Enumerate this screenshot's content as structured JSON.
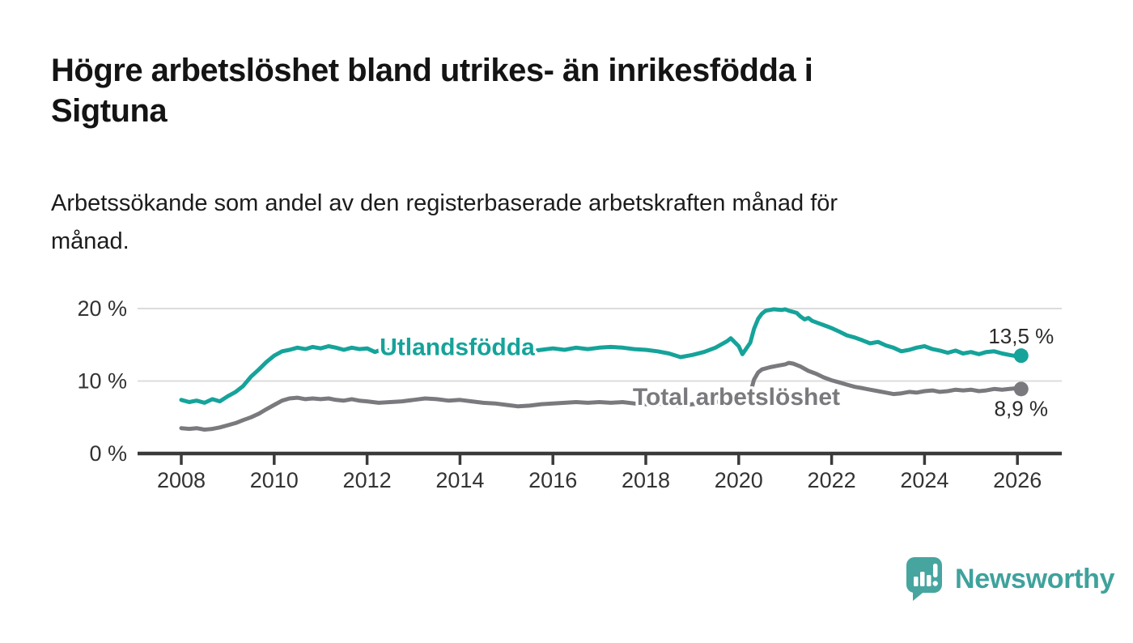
{
  "header": {
    "title": "Högre arbetslöshet bland utrikes- än inrikesfödda i\nSigtuna",
    "subtitle": "Arbetssökande som andel av den registerbaserade arbetskraften månad för\nmånad."
  },
  "branding": {
    "logo_text": "Newsworthy",
    "logo_icon": "bar-chart-speech-bubble-icon",
    "logo_color": "#47a5a0",
    "logo_text_color": "#3fa29c"
  },
  "colors": {
    "foreign_born_line": "#15a39a",
    "total_line": "#7a797d",
    "axis_text": "#333333",
    "axis_line": "#3a3a3a",
    "gridline": "#dcdcdc",
    "end_label_text": "#2b2b2b",
    "title_text": "#141414"
  },
  "chart_data": {
    "type": "line",
    "x_ticks": [
      2008,
      2010,
      2012,
      2014,
      2016,
      2018,
      2020,
      2022,
      2024,
      2026
    ],
    "y_ticks": [
      {
        "value": 0,
        "label": "0 %"
      },
      {
        "value": 10,
        "label": "10 %"
      },
      {
        "value": 20,
        "label": "20 %"
      }
    ],
    "xlim": [
      2007.1,
      2027.0
    ],
    "ylim": [
      0,
      22.4
    ],
    "grid": "horizontal-only",
    "legend_position": "inline-labels-on-lines",
    "series": [
      {
        "name": "Utlandsfödda",
        "color": "#15a39a",
        "end_label": "13,5 %",
        "end_label_position": "above",
        "last_value": 13.5,
        "inline_label": {
          "year": 2013.94,
          "value": 13.6
        },
        "points": [
          [
            2008.0,
            7.4
          ],
          [
            2008.17,
            7.1
          ],
          [
            2008.33,
            7.3
          ],
          [
            2008.5,
            7.0
          ],
          [
            2008.67,
            7.5
          ],
          [
            2008.83,
            7.2
          ],
          [
            2009.0,
            7.9
          ],
          [
            2009.17,
            8.5
          ],
          [
            2009.33,
            9.3
          ],
          [
            2009.5,
            10.6
          ],
          [
            2009.67,
            11.6
          ],
          [
            2009.83,
            12.6
          ],
          [
            2010.0,
            13.5
          ],
          [
            2010.17,
            14.1
          ],
          [
            2010.33,
            14.3
          ],
          [
            2010.5,
            14.6
          ],
          [
            2010.67,
            14.4
          ],
          [
            2010.83,
            14.7
          ],
          [
            2011.0,
            14.5
          ],
          [
            2011.17,
            14.8
          ],
          [
            2011.33,
            14.6
          ],
          [
            2011.5,
            14.3
          ],
          [
            2011.67,
            14.6
          ],
          [
            2011.83,
            14.4
          ],
          [
            2012.0,
            14.5
          ],
          [
            2012.17,
            14.0
          ],
          [
            2012.33,
            14.4
          ],
          [
            2012.5,
            14.2
          ],
          [
            2012.67,
            14.5
          ],
          [
            2012.83,
            14.4
          ],
          [
            2013.0,
            14.5
          ],
          [
            2013.25,
            14.7
          ],
          [
            2013.5,
            14.8
          ],
          [
            2013.75,
            14.5
          ],
          [
            2014.0,
            14.7
          ],
          [
            2014.25,
            14.4
          ],
          [
            2014.5,
            14.2
          ],
          [
            2014.75,
            14.0
          ],
          [
            2015.0,
            14.3
          ],
          [
            2015.25,
            13.9
          ],
          [
            2015.5,
            14.1
          ],
          [
            2015.75,
            14.3
          ],
          [
            2016.0,
            14.5
          ],
          [
            2016.25,
            14.3
          ],
          [
            2016.5,
            14.6
          ],
          [
            2016.75,
            14.4
          ],
          [
            2017.0,
            14.6
          ],
          [
            2017.25,
            14.7
          ],
          [
            2017.5,
            14.6
          ],
          [
            2017.75,
            14.4
          ],
          [
            2018.0,
            14.3
          ],
          [
            2018.25,
            14.1
          ],
          [
            2018.5,
            13.8
          ],
          [
            2018.75,
            13.3
          ],
          [
            2019.0,
            13.6
          ],
          [
            2019.25,
            14.0
          ],
          [
            2019.5,
            14.6
          ],
          [
            2019.75,
            15.5
          ],
          [
            2019.83,
            15.9
          ],
          [
            2020.0,
            14.8
          ],
          [
            2020.08,
            13.7
          ],
          [
            2020.25,
            15.3
          ],
          [
            2020.33,
            17.2
          ],
          [
            2020.42,
            18.6
          ],
          [
            2020.5,
            19.3
          ],
          [
            2020.58,
            19.7
          ],
          [
            2020.75,
            19.9
          ],
          [
            2020.92,
            19.8
          ],
          [
            2021.0,
            19.9
          ],
          [
            2021.08,
            19.7
          ],
          [
            2021.25,
            19.4
          ],
          [
            2021.33,
            18.9
          ],
          [
            2021.42,
            18.5
          ],
          [
            2021.5,
            18.7
          ],
          [
            2021.58,
            18.3
          ],
          [
            2021.75,
            17.9
          ],
          [
            2021.92,
            17.5
          ],
          [
            2022.0,
            17.3
          ],
          [
            2022.17,
            16.8
          ],
          [
            2022.33,
            16.3
          ],
          [
            2022.5,
            16.0
          ],
          [
            2022.67,
            15.6
          ],
          [
            2022.83,
            15.2
          ],
          [
            2023.0,
            15.4
          ],
          [
            2023.17,
            14.9
          ],
          [
            2023.33,
            14.6
          ],
          [
            2023.5,
            14.1
          ],
          [
            2023.67,
            14.3
          ],
          [
            2023.83,
            14.6
          ],
          [
            2024.0,
            14.8
          ],
          [
            2024.17,
            14.4
          ],
          [
            2024.33,
            14.2
          ],
          [
            2024.5,
            13.9
          ],
          [
            2024.67,
            14.2
          ],
          [
            2024.83,
            13.8
          ],
          [
            2025.0,
            14.0
          ],
          [
            2025.17,
            13.7
          ],
          [
            2025.33,
            14.0
          ],
          [
            2025.5,
            14.1
          ],
          [
            2025.67,
            13.8
          ],
          [
            2025.83,
            13.6
          ],
          [
            2026.0,
            13.4
          ],
          [
            2026.08,
            13.5
          ]
        ]
      },
      {
        "name": "Total arbetslöshet",
        "color": "#7a797d",
        "end_label": "8,9 %",
        "end_label_position": "below",
        "last_value": 8.9,
        "inline_label": {
          "year": 2019.95,
          "value": 6.7
        },
        "points": [
          [
            2008.0,
            3.5
          ],
          [
            2008.17,
            3.4
          ],
          [
            2008.33,
            3.5
          ],
          [
            2008.5,
            3.3
          ],
          [
            2008.67,
            3.4
          ],
          [
            2008.83,
            3.6
          ],
          [
            2009.0,
            3.9
          ],
          [
            2009.17,
            4.2
          ],
          [
            2009.33,
            4.6
          ],
          [
            2009.5,
            5.0
          ],
          [
            2009.67,
            5.5
          ],
          [
            2009.83,
            6.1
          ],
          [
            2010.0,
            6.7
          ],
          [
            2010.17,
            7.3
          ],
          [
            2010.33,
            7.6
          ],
          [
            2010.5,
            7.7
          ],
          [
            2010.67,
            7.5
          ],
          [
            2010.83,
            7.6
          ],
          [
            2011.0,
            7.5
          ],
          [
            2011.17,
            7.6
          ],
          [
            2011.33,
            7.4
          ],
          [
            2011.5,
            7.3
          ],
          [
            2011.67,
            7.5
          ],
          [
            2011.83,
            7.3
          ],
          [
            2012.0,
            7.2
          ],
          [
            2012.25,
            7.0
          ],
          [
            2012.5,
            7.1
          ],
          [
            2012.75,
            7.2
          ],
          [
            2013.0,
            7.4
          ],
          [
            2013.25,
            7.6
          ],
          [
            2013.5,
            7.5
          ],
          [
            2013.75,
            7.3
          ],
          [
            2014.0,
            7.4
          ],
          [
            2014.25,
            7.2
          ],
          [
            2014.5,
            7.0
          ],
          [
            2014.75,
            6.9
          ],
          [
            2015.0,
            6.7
          ],
          [
            2015.25,
            6.5
          ],
          [
            2015.5,
            6.6
          ],
          [
            2015.75,
            6.8
          ],
          [
            2016.0,
            6.9
          ],
          [
            2016.25,
            7.0
          ],
          [
            2016.5,
            7.1
          ],
          [
            2016.75,
            7.0
          ],
          [
            2017.0,
            7.1
          ],
          [
            2017.25,
            7.0
          ],
          [
            2017.5,
            7.1
          ],
          [
            2017.75,
            6.9
          ],
          [
            2018.0,
            6.8
          ],
          [
            2018.25,
            6.9
          ],
          [
            2018.5,
            6.7
          ],
          [
            2018.75,
            6.6
          ],
          [
            2019.0,
            6.8
          ],
          [
            2019.25,
            6.9
          ],
          [
            2019.5,
            7.1
          ],
          [
            2019.75,
            7.3
          ],
          [
            2020.0,
            6.9
          ],
          [
            2020.08,
            6.7
          ],
          [
            2020.25,
            8.3
          ],
          [
            2020.33,
            10.2
          ],
          [
            2020.42,
            11.2
          ],
          [
            2020.5,
            11.6
          ],
          [
            2020.67,
            11.9
          ],
          [
            2020.83,
            12.1
          ],
          [
            2021.0,
            12.3
          ],
          [
            2021.08,
            12.5
          ],
          [
            2021.17,
            12.4
          ],
          [
            2021.33,
            12.0
          ],
          [
            2021.5,
            11.4
          ],
          [
            2021.67,
            11.0
          ],
          [
            2021.83,
            10.5
          ],
          [
            2022.0,
            10.1
          ],
          [
            2022.17,
            9.8
          ],
          [
            2022.33,
            9.5
          ],
          [
            2022.5,
            9.2
          ],
          [
            2022.67,
            9.0
          ],
          [
            2022.83,
            8.8
          ],
          [
            2023.0,
            8.6
          ],
          [
            2023.17,
            8.4
          ],
          [
            2023.33,
            8.2
          ],
          [
            2023.5,
            8.3
          ],
          [
            2023.67,
            8.5
          ],
          [
            2023.83,
            8.4
          ],
          [
            2024.0,
            8.6
          ],
          [
            2024.17,
            8.7
          ],
          [
            2024.33,
            8.5
          ],
          [
            2024.5,
            8.6
          ],
          [
            2024.67,
            8.8
          ],
          [
            2024.83,
            8.7
          ],
          [
            2025.0,
            8.8
          ],
          [
            2025.17,
            8.6
          ],
          [
            2025.33,
            8.7
          ],
          [
            2025.5,
            8.9
          ],
          [
            2025.67,
            8.8
          ],
          [
            2025.83,
            8.9
          ],
          [
            2026.0,
            9.0
          ],
          [
            2026.08,
            8.9
          ]
        ]
      }
    ]
  }
}
